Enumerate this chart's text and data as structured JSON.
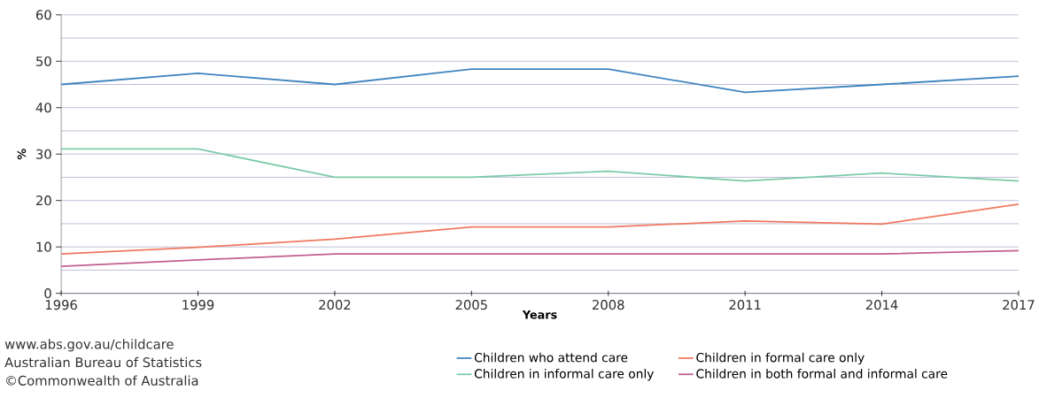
{
  "chart_data": {
    "type": "line",
    "xlabel": "Years",
    "ylabel": "%",
    "x": [
      1996,
      1999,
      2002,
      2005,
      2008,
      2011,
      2014,
      2017
    ],
    "xlim": [
      1996,
      2017
    ],
    "xticks": [
      1996,
      1999,
      2002,
      2005,
      2008,
      2011,
      2014,
      2017
    ],
    "ylim": [
      0,
      60
    ],
    "yticks": [
      0,
      10,
      20,
      30,
      40,
      50,
      60
    ],
    "grid": "y",
    "legend": "bottom",
    "marker": "none",
    "line_style": "solid",
    "series": [
      {
        "name": "Children who attend care",
        "color": "#3f84bf",
        "values": [
          45,
          47.4,
          45,
          48.3,
          48.3,
          43.3,
          45,
          46.8
        ]
      },
      {
        "name": "Children in formal care only",
        "color": "#f07860",
        "values": [
          8.5,
          9.9,
          11.7,
          14.3,
          14.3,
          15.6,
          14.9,
          19.2
        ]
      },
      {
        "name": "Children in informal care only",
        "color": "#7ccba8",
        "values": [
          31.1,
          31.1,
          25,
          25,
          26.3,
          24.2,
          25.9,
          24.2
        ]
      },
      {
        "name": "Children in both formal and informal care",
        "color": "#c06090",
        "values": [
          5.8,
          7.2,
          8.5,
          8.5,
          8.5,
          8.5,
          8.5,
          9.2
        ]
      }
    ],
    "annotations": [
      "www.abs.gov.au/childcare",
      "Australian Bureau of Statistics",
      "©Commonwealth of Australia"
    ]
  }
}
